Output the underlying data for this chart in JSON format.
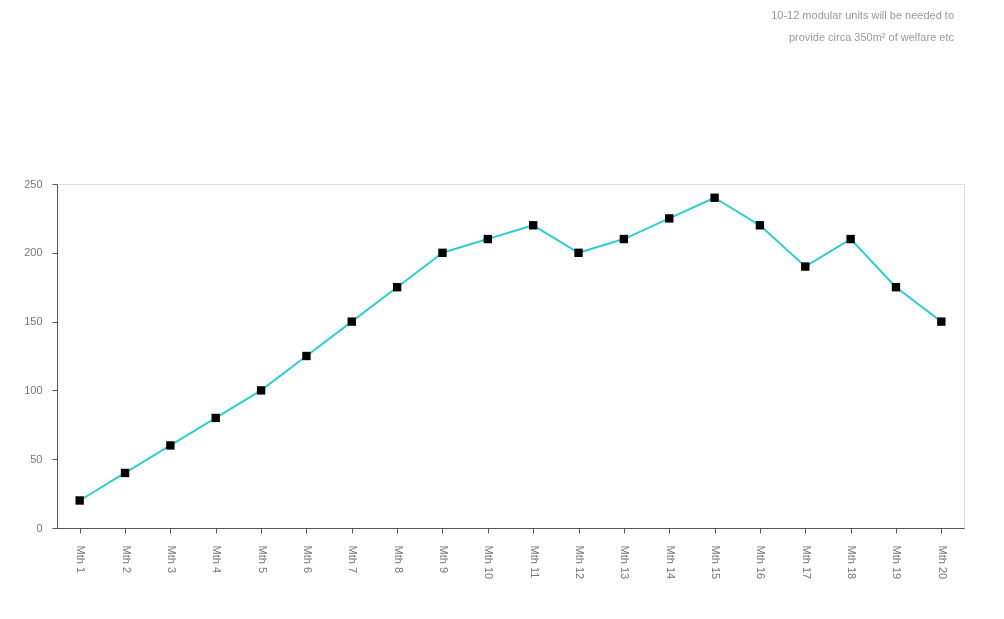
{
  "chart_data": {
    "type": "line",
    "categories": [
      "Mth 1",
      "Mth 2",
      "Mth 3",
      "Mth 4",
      "Mth 5",
      "Mth 6",
      "Mth 7",
      "Mth 8",
      "Mth 9",
      "Mth 10",
      "Mth 11",
      "Mth 12",
      "Mth 13",
      "Mth 14",
      "Mth 15",
      "Mth 16",
      "Mth 17",
      "Mth 18",
      "Mth 19",
      "Mth 20"
    ],
    "series": [
      {
        "color": "#33cccc",
        "values": [
          20,
          40,
          60,
          80,
          100,
          125,
          150,
          175,
          200,
          210,
          220,
          200,
          210,
          225,
          240,
          220,
          190,
          210,
          175,
          150
        ]
      }
    ],
    "ylim": [
      0,
      250
    ],
    "yticks": [
      0,
      50,
      100,
      150,
      200,
      250
    ],
    "grid": false,
    "marker": "square",
    "line_style": "solid",
    "annotations": [
      "10-12 modular units will be needed to provide circa 350m² of welfare etc"
    ]
  }
}
